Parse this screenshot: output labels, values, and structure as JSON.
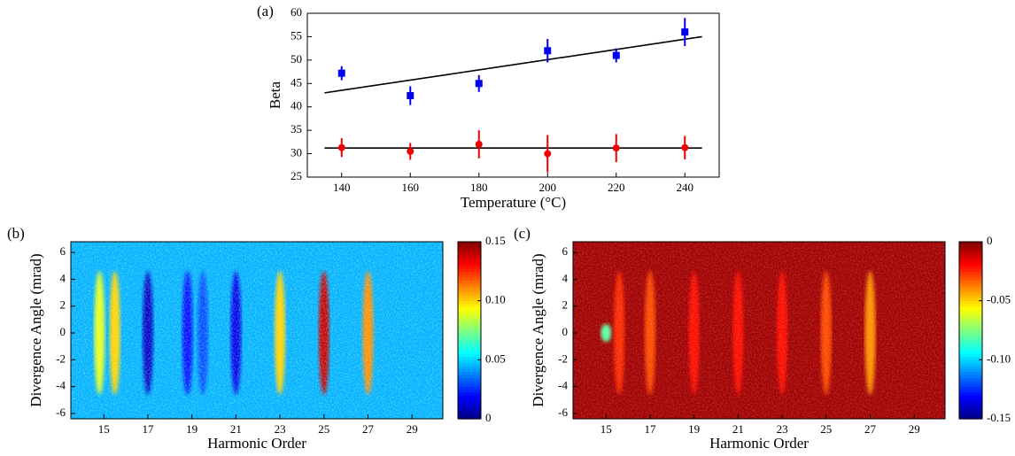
{
  "chart_data": [
    {
      "type": "scatter",
      "title": "(a)",
      "x_label": "Temperature (°C)",
      "y_label": "Beta",
      "x": [
        140,
        160,
        180,
        200,
        220,
        240
      ],
      "series": [
        {
          "color": "#0000ee",
          "marker": "square",
          "values": [
            47.2,
            42.4,
            45,
            52,
            51,
            56
          ],
          "errors": [
            1.5,
            2,
            1.8,
            2.5,
            1.5,
            3
          ]
        },
        {
          "color": "#ee0000",
          "marker": "circle",
          "values": [
            31.3,
            30.5,
            32,
            30,
            31.2,
            31.3
          ],
          "errors": [
            2,
            1.8,
            3,
            4,
            3,
            2.5
          ]
        }
      ],
      "fits": [
        {
          "color": "#000000",
          "x": [
            135,
            245
          ],
          "values": [
            43,
            55
          ]
        },
        {
          "color": "#000000",
          "x": [
            135,
            245
          ],
          "values": [
            31.2,
            31.2
          ]
        }
      ],
      "xlim": [
        130,
        250
      ],
      "ylim": [
        25,
        60
      ],
      "xticks": [
        140,
        160,
        180,
        200,
        220,
        240
      ],
      "yticks": [
        25,
        30,
        35,
        40,
        45,
        50,
        55,
        60
      ]
    },
    {
      "type": "heatmap",
      "title": "(b)",
      "x_label": "Harmonic Order",
      "y_label": "Divergence Angle (mrad)",
      "colormap": "jet",
      "background": 0.045,
      "x": [
        14.8,
        15.5,
        17,
        18.8,
        19.5,
        21,
        23,
        25,
        27
      ],
      "values": [
        0.09,
        0.1,
        0.01,
        0.02,
        0.03,
        0.015,
        0.1,
        0.14,
        0.11
      ],
      "xlim": [
        13.5,
        30.4
      ],
      "ylim": [
        -6.4,
        6.8
      ],
      "xticks": [
        15,
        17,
        19,
        21,
        23,
        25,
        27,
        29
      ],
      "yticks": [
        -6,
        -4,
        -2,
        0,
        2,
        4,
        6
      ],
      "clim": [
        0,
        0.15
      ],
      "cticks": [
        0,
        {
          "value": 0.05,
          "label": "0.05"
        },
        {
          "value": 0.1,
          "label": "0.10"
        },
        0.15
      ]
    },
    {
      "type": "heatmap",
      "title": "(c)",
      "x_label": "Harmonic Order",
      "y_label": "Divergence Angle (mrad)",
      "colormap": "jet",
      "background": -0.005,
      "x": [
        15,
        15.6,
        17,
        19,
        21,
        23,
        25,
        27
      ],
      "values": [
        -0.08,
        -0.025,
        -0.03,
        -0.02,
        -0.02,
        -0.02,
        -0.03,
        -0.04
      ],
      "xlim": [
        13.5,
        30.4
      ],
      "ylim": [
        -6.4,
        6.8
      ],
      "xticks": [
        15,
        17,
        19,
        21,
        23,
        25,
        27,
        29
      ],
      "yticks": [
        -6,
        -4,
        -2,
        0,
        2,
        4,
        6
      ],
      "clim": [
        -0.15,
        0
      ],
      "cticks": [
        -0.15,
        {
          "value": -0.1,
          "label": "-0.10"
        },
        -0.05,
        0
      ]
    }
  ]
}
